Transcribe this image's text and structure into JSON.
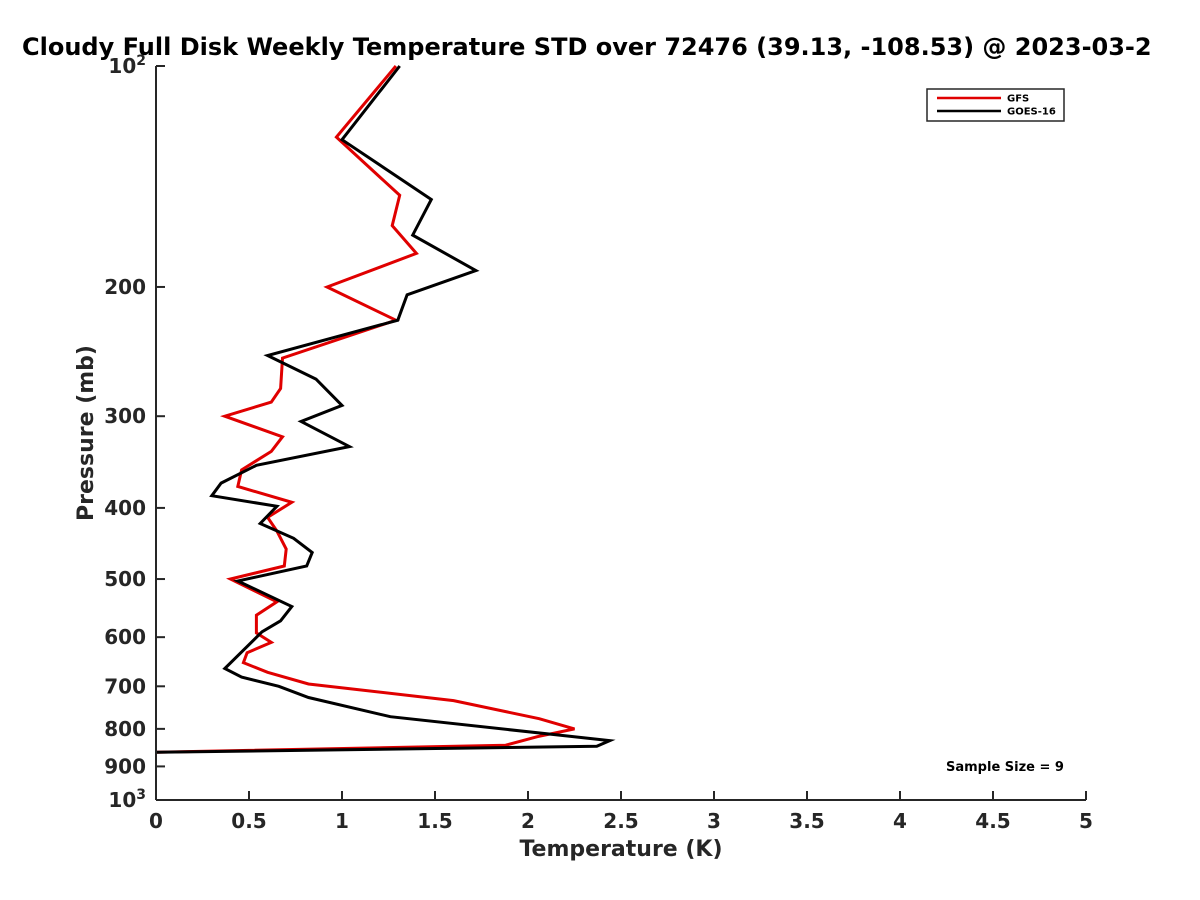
{
  "chart_data": {
    "type": "line",
    "title": "Cloudy Full Disk Weekly Temperature STD over 72476 (39.13, -108.53) @ 2023-03-2",
    "xlabel": "Temperature (K)",
    "ylabel": "Pressure (mb)",
    "xlim": [
      0,
      5
    ],
    "ylim": [
      100,
      1000
    ],
    "y_scale": "log",
    "y_reversed": true,
    "grid": false,
    "legend_position": "top-right",
    "x_ticks": [
      "0",
      "0.5",
      "1",
      "1.5",
      "2",
      "2.5",
      "3",
      "3.5",
      "4",
      "4.5",
      "5"
    ],
    "y_ticks": [
      {
        "value": 100,
        "base": "10",
        "exp": "2"
      },
      {
        "value": 200,
        "label": "200"
      },
      {
        "value": 300,
        "label": "300"
      },
      {
        "value": 400,
        "label": "400"
      },
      {
        "value": 500,
        "label": "500"
      },
      {
        "value": 600,
        "label": "600"
      },
      {
        "value": 700,
        "label": "700"
      },
      {
        "value": 800,
        "label": "800"
      },
      {
        "value": 900,
        "label": "900"
      },
      {
        "value": 1000,
        "base": "10",
        "exp": "3"
      }
    ],
    "series": [
      {
        "name": "GFS",
        "color": "#e00000",
        "points": [
          [
            1.29,
            100
          ],
          [
            0.97,
            125
          ],
          [
            1.31,
            150
          ],
          [
            1.27,
            165
          ],
          [
            1.4,
            180
          ],
          [
            0.92,
            200
          ],
          [
            1.29,
            222
          ],
          [
            0.68,
            250
          ],
          [
            0.67,
            275
          ],
          [
            0.62,
            287
          ],
          [
            0.37,
            300
          ],
          [
            0.68,
            320
          ],
          [
            0.62,
            335
          ],
          [
            0.46,
            355
          ],
          [
            0.44,
            374
          ],
          [
            0.73,
            393
          ],
          [
            0.6,
            412
          ],
          [
            0.65,
            430
          ],
          [
            0.7,
            455
          ],
          [
            0.69,
            480
          ],
          [
            0.4,
            500
          ],
          [
            0.65,
            537
          ],
          [
            0.54,
            560
          ],
          [
            0.54,
            592
          ],
          [
            0.62,
            610
          ],
          [
            0.49,
            630
          ],
          [
            0.47,
            650
          ],
          [
            0.6,
            670
          ],
          [
            0.82,
            695
          ],
          [
            1.6,
            732
          ],
          [
            2.06,
            775
          ],
          [
            2.25,
            800
          ],
          [
            2.05,
            820
          ],
          [
            1.88,
            842
          ],
          [
            0.0,
            861
          ]
        ]
      },
      {
        "name": "GOES-16",
        "color": "#000000",
        "points": [
          [
            1.31,
            100
          ],
          [
            1.0,
            126
          ],
          [
            1.48,
            152
          ],
          [
            1.38,
            170
          ],
          [
            1.72,
            190
          ],
          [
            1.35,
            205
          ],
          [
            1.3,
            222
          ],
          [
            0.6,
            248
          ],
          [
            0.86,
            267
          ],
          [
            1.0,
            290
          ],
          [
            0.78,
            305
          ],
          [
            1.04,
            330
          ],
          [
            0.54,
            350
          ],
          [
            0.35,
            370
          ],
          [
            0.3,
            385
          ],
          [
            0.65,
            398
          ],
          [
            0.56,
            420
          ],
          [
            0.74,
            440
          ],
          [
            0.84,
            460
          ],
          [
            0.81,
            480
          ],
          [
            0.44,
            503
          ],
          [
            0.73,
            545
          ],
          [
            0.67,
            570
          ],
          [
            0.57,
            590
          ],
          [
            0.47,
            625
          ],
          [
            0.37,
            662
          ],
          [
            0.46,
            680
          ],
          [
            0.66,
            700
          ],
          [
            0.82,
            725
          ],
          [
            1.26,
            770
          ],
          [
            2.15,
            815
          ],
          [
            2.44,
            830
          ],
          [
            2.37,
            845
          ],
          [
            0.0,
            861
          ]
        ]
      }
    ],
    "annotations": [
      "Sample Size = 9"
    ]
  }
}
